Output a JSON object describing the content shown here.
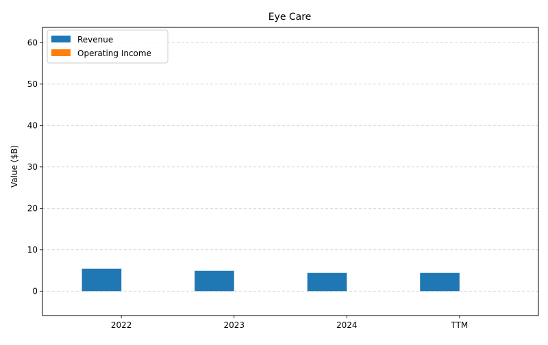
{
  "chart_data": {
    "type": "bar",
    "title": "Eye Care",
    "xlabel": "",
    "ylabel": "Value ($B)",
    "categories": [
      "2022",
      "2023",
      "2024",
      "TTM"
    ],
    "series": [
      {
        "name": "Revenue",
        "values": [
          5.4,
          4.9,
          4.4,
          4.4
        ],
        "color": "#1f77b4"
      },
      {
        "name": "Operating Income",
        "values": [
          0,
          0,
          0,
          0
        ],
        "color": "#ff7f0e"
      }
    ],
    "ylim": [
      -5.9,
      63.7
    ],
    "yticks": [
      0,
      10,
      20,
      30,
      40,
      50,
      60
    ],
    "grid": true,
    "legend_position": "top-left"
  }
}
